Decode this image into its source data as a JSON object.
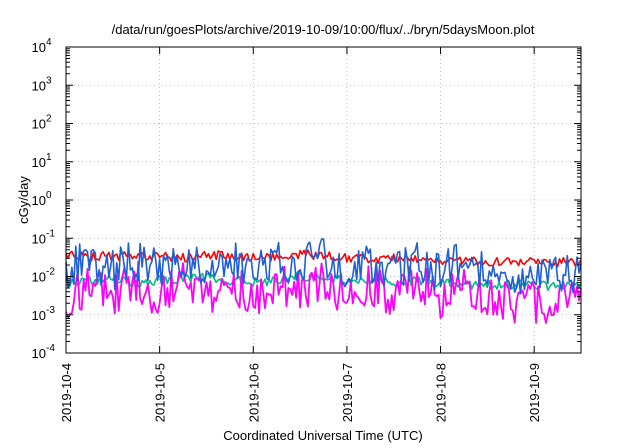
{
  "chart_data": {
    "type": "line",
    "title": "/data/run/goesPlots/archive/2019-10-09/10:00/flux/../bryn/5daysMoon.plot",
    "xlabel": "Coordinated Universal Time (UTC)",
    "ylabel": "cGy/day",
    "yscale": "log",
    "ylim": [
      0.0001,
      10000
    ],
    "y_ticks": [
      {
        "exp": "-4",
        "value": 0.0001
      },
      {
        "exp": "-3",
        "value": 0.001
      },
      {
        "exp": "-2",
        "value": 0.01
      },
      {
        "exp": "-1",
        "value": 0.1
      },
      {
        "exp": "0",
        "value": 1
      },
      {
        "exp": "1",
        "value": 10
      },
      {
        "exp": "2",
        "value": 100
      },
      {
        "exp": "3",
        "value": 1000
      },
      {
        "exp": "4",
        "value": 10000
      }
    ],
    "y_tick_base": "10",
    "x_ticks": [
      "2019-10-4",
      "2019-10-5",
      "2019-10-6",
      "2019-10-7",
      "2019-10-8",
      "2019-10-9"
    ],
    "xlim": [
      "2019-10-04 00:00",
      "2019-10-09 12:00"
    ],
    "grid": true,
    "series": [
      {
        "color": "#ff0000",
        "x": [
          "2019-10-04 00:00",
          "2019-10-04 06:00",
          "2019-10-04 12:00",
          "2019-10-04 18:00",
          "2019-10-05 00:00",
          "2019-10-05 06:00",
          "2019-10-05 12:00",
          "2019-10-05 18:00",
          "2019-10-06 00:00",
          "2019-10-06 06:00",
          "2019-10-06 12:00",
          "2019-10-06 18:00",
          "2019-10-07 00:00",
          "2019-10-07 06:00",
          "2019-10-07 12:00",
          "2019-10-07 18:00",
          "2019-10-08 00:00",
          "2019-10-08 06:00",
          "2019-10-08 12:00",
          "2019-10-08 18:00",
          "2019-10-09 00:00",
          "2019-10-09 06:00",
          "2019-10-09 12:00"
        ],
        "values": [
          0.045,
          0.038,
          0.04,
          0.042,
          0.039,
          0.036,
          0.041,
          0.04,
          0.037,
          0.038,
          0.045,
          0.04,
          0.035,
          0.033,
          0.034,
          0.032,
          0.031,
          0.03,
          0.029,
          0.028,
          0.028,
          0.027,
          0.028
        ]
      },
      {
        "color": "#00bb88",
        "x": [
          "2019-10-04 00:00",
          "2019-10-04 06:00",
          "2019-10-04 12:00",
          "2019-10-04 18:00",
          "2019-10-05 00:00",
          "2019-10-05 06:00",
          "2019-10-05 12:00",
          "2019-10-05 18:00",
          "2019-10-06 00:00",
          "2019-10-06 06:00",
          "2019-10-06 12:00",
          "2019-10-06 18:00",
          "2019-10-07 00:00",
          "2019-10-07 06:00",
          "2019-10-07 12:00",
          "2019-10-07 18:00",
          "2019-10-08 00:00",
          "2019-10-08 06:00",
          "2019-10-08 12:00",
          "2019-10-08 18:00",
          "2019-10-09 00:00",
          "2019-10-09 06:00",
          "2019-10-09 12:00"
        ],
        "values": [
          0.008,
          0.009,
          0.01,
          0.008,
          0.009,
          0.01,
          0.011,
          0.009,
          0.008,
          0.009,
          0.012,
          0.01,
          0.009,
          0.008,
          0.008,
          0.009,
          0.008,
          0.007,
          0.007,
          0.007,
          0.007,
          0.006,
          0.007
        ]
      },
      {
        "color": "#ff00ff",
        "x": [
          "2019-10-04 00:00",
          "2019-10-04 06:00",
          "2019-10-04 12:00",
          "2019-10-04 18:00",
          "2019-10-05 00:00",
          "2019-10-05 06:00",
          "2019-10-05 12:00",
          "2019-10-05 18:00",
          "2019-10-06 00:00",
          "2019-10-06 06:00",
          "2019-10-06 12:00",
          "2019-10-06 18:00",
          "2019-10-07 00:00",
          "2019-10-07 06:00",
          "2019-10-07 12:00",
          "2019-10-07 18:00",
          "2019-10-08 00:00",
          "2019-10-08 06:00",
          "2019-10-08 12:00",
          "2019-10-08 18:00",
          "2019-10-09 00:00",
          "2019-10-09 06:00",
          "2019-10-09 12:00"
        ],
        "values": [
          0.005,
          0.012,
          0.006,
          0.015,
          0.005,
          0.014,
          0.006,
          0.016,
          0.005,
          0.013,
          0.007,
          0.018,
          0.005,
          0.012,
          0.006,
          0.015,
          0.005,
          0.014,
          0.005,
          0.004,
          0.004,
          0.004,
          0.005
        ]
      },
      {
        "color": "#1f5fd6",
        "x": [
          "2019-10-04 00:00",
          "2019-10-04 06:00",
          "2019-10-04 12:00",
          "2019-10-04 18:00",
          "2019-10-05 00:00",
          "2019-10-05 06:00",
          "2019-10-05 12:00",
          "2019-10-05 18:00",
          "2019-10-06 00:00",
          "2019-10-06 06:00",
          "2019-10-06 12:00",
          "2019-10-06 18:00",
          "2019-10-07 00:00",
          "2019-10-07 06:00",
          "2019-10-07 12:00",
          "2019-10-07 18:00",
          "2019-10-08 00:00",
          "2019-10-08 06:00",
          "2019-10-08 12:00",
          "2019-10-08 18:00",
          "2019-10-09 00:00",
          "2019-10-09 06:00",
          "2019-10-09 12:00"
        ],
        "values": [
          0.03,
          0.045,
          0.028,
          0.05,
          0.027,
          0.048,
          0.03,
          0.052,
          0.026,
          0.046,
          0.033,
          0.06,
          0.025,
          0.045,
          0.028,
          0.05,
          0.024,
          0.047,
          0.022,
          0.021,
          0.02,
          0.02,
          0.022
        ]
      }
    ]
  }
}
